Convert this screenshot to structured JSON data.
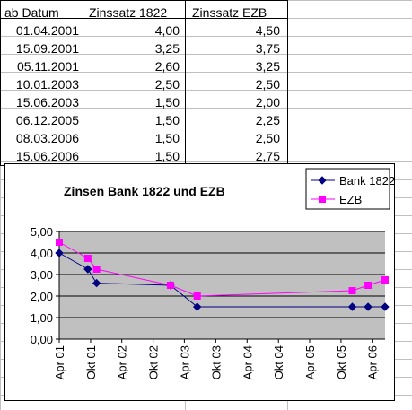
{
  "table": {
    "headers": [
      "ab Datum",
      "Zinssatz 1822",
      "Zinssatz EZB"
    ],
    "rows": [
      [
        "01.04.2001",
        "4,00",
        "4,50"
      ],
      [
        "15.09.2001",
        "3,25",
        "3,75"
      ],
      [
        "05.11.2001",
        "2,60",
        "3,25"
      ],
      [
        "10.01.2003",
        "2,50",
        "2,50"
      ],
      [
        "15.06.2003",
        "1,50",
        "2,00"
      ],
      [
        "06.12.2005",
        "1,50",
        "2,25"
      ],
      [
        "08.03.2006",
        "1,50",
        "2,50"
      ],
      [
        "15.06.2006",
        "1,50",
        "2,75"
      ]
    ]
  },
  "chart_data": {
    "type": "line",
    "title": "Zinsen Bank 1822 und EZB",
    "x": [
      "2001-04-01",
      "2001-09-15",
      "2001-11-05",
      "2003-01-10",
      "2003-06-15",
      "2005-12-06",
      "2006-03-08",
      "2006-06-15"
    ],
    "series": [
      {
        "name": "Bank 1822",
        "values": [
          4.0,
          3.25,
          2.6,
          2.5,
          1.5,
          1.5,
          1.5,
          1.5
        ],
        "color": "#000080",
        "marker": "diamond"
      },
      {
        "name": "EZB",
        "values": [
          4.5,
          3.75,
          3.25,
          2.5,
          2.0,
          2.25,
          2.5,
          2.75
        ],
        "color": "#ff00ff",
        "marker": "square"
      }
    ],
    "y_ticks": [
      "0,00",
      "1,00",
      "2,00",
      "3,00",
      "4,00",
      "5,00"
    ],
    "ylim": [
      0,
      5
    ],
    "x_ticks": [
      "Apr 01",
      "Okt 01",
      "Apr 02",
      "Okt 02",
      "Apr 03",
      "Okt 03",
      "Apr 04",
      "Okt 04",
      "Apr 05",
      "Okt 05",
      "Apr 06"
    ],
    "x_tick_dates": [
      "2001-04-01",
      "2001-10-01",
      "2002-04-01",
      "2002-10-01",
      "2003-04-01",
      "2003-10-01",
      "2004-04-01",
      "2004-10-01",
      "2005-04-01",
      "2005-10-01",
      "2006-04-01"
    ],
    "xlim": [
      "2001-04-01",
      "2006-06-15"
    ],
    "grid": true,
    "plot_background": "#c0c0c0",
    "legend_position": "top-right"
  }
}
